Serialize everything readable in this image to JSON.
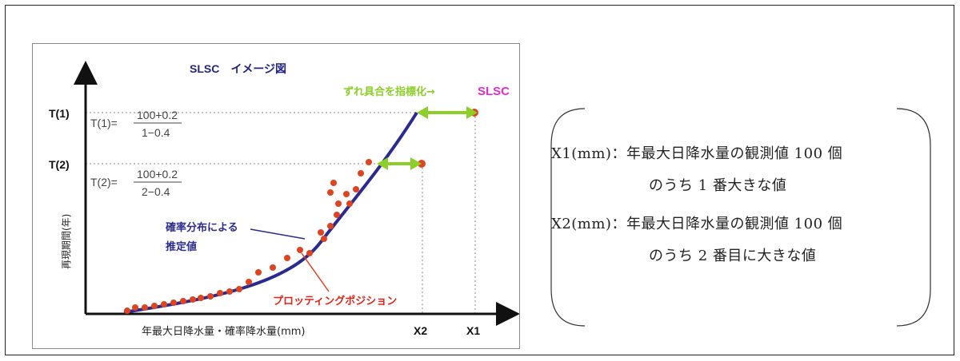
{
  "figure": {
    "title": "SLSC　イメージ図",
    "deviation_label": "ずれ具合を指標化→",
    "slsc_label": "SLSC",
    "t1_axis_label": "T(1)",
    "t2_axis_label": "T(2)",
    "t1_formula_lhs": "T(1)=",
    "t1_numerator": "100+0.2",
    "t1_denominator": "1−0.4",
    "t2_formula_lhs": "T(2)=",
    "t2_numerator": "100+0.2",
    "t2_denominator": "2−0.4",
    "ylabel": "再現期間(年)",
    "xlabel": "年最大日降水量・確率降水量(mm)",
    "x2_tick": "X2",
    "x1_tick": "X1",
    "curve_label_line1": "確率分布による",
    "curve_label_line2": "推定値",
    "points_label": "プロッティングポジション",
    "colors": {
      "curve": "#2b2b8f",
      "points": "#e0431f",
      "arrow": "#8ccf2a",
      "slsc": "#e629d3",
      "title": "#23238a",
      "points_label": "#e0261a"
    }
  },
  "notes": {
    "line1": "X1(mm)：年最大日降水量の観測値 100 個",
    "line2": "のうち 1 番大きな値",
    "line3": "X2(mm)：年最大日降水量の観測値 100 個",
    "line4": "のうち 2 番目に大きな値"
  }
}
